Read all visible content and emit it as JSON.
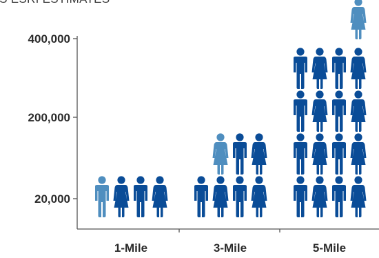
{
  "chart_data": {
    "type": "bar",
    "subtype": "pictogram",
    "title": "...S ESRI ESTIMATES",
    "xlabel": "",
    "ylabel": "",
    "categories": [
      "1-Mile",
      "3-Mile",
      "5-Mile"
    ],
    "y_ticks": [
      {
        "label": "400,000"
      },
      {
        "label": "200,000"
      },
      {
        "label": "20,000"
      }
    ],
    "icon_rows": [
      [
        "male-light",
        "female-dark",
        "male-dark",
        "female-dark"
      ],
      [
        "male-dark",
        "female-dark",
        "male-dark",
        "female-dark",
        "female-light",
        "male-dark",
        "female-dark"
      ],
      [
        "male-dark",
        "female-dark",
        "male-dark",
        "female-dark",
        "male-dark",
        "female-dark",
        "male-dark",
        "female-dark",
        "male-dark",
        "female-dark",
        "male-dark",
        "female-dark",
        "male-dark",
        "female-dark",
        "male-dark",
        "female-dark",
        "female-light"
      ]
    ],
    "colors": {
      "dark": "#0a4c97",
      "light": "#4f8ebf",
      "axis": "#555555"
    },
    "grid": false,
    "legend": "none"
  }
}
